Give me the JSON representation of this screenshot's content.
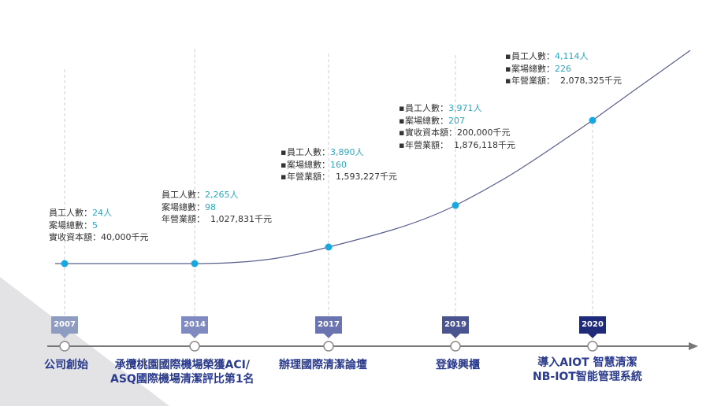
{
  "colors": {
    "curve": "#5a5f8e",
    "dot": "#18a8e0",
    "axis": "#777777",
    "accent": "#2aa8c0",
    "event_text": "#2a3a8c",
    "corner": "#e3e3e6"
  },
  "milestones": [
    {
      "year": "2007",
      "tag_color": "#8f9cc2",
      "event_lines": [
        "公司創始"
      ],
      "stats": [
        {
          "label": "員工人數：",
          "value": "24人",
          "accent": true
        },
        {
          "label": "案場總數：",
          "value": "5",
          "accent": true
        },
        {
          "label": "實收資本額：",
          "value": "40,000千元",
          "accent": false
        }
      ]
    },
    {
      "year": "2014",
      "tag_color": "#7f8bc0",
      "event_lines": [
        "承攬桃園國際機場榮獲ACI/",
        "ASQ國際機場清潔評比第1名"
      ],
      "stats": [
        {
          "label": "員工人數：",
          "value": "2,265人",
          "accent": true
        },
        {
          "label": "案場總數：",
          "value": "98",
          "accent": true
        },
        {
          "label": "年營業額：",
          "value": "  1,027,831千元",
          "accent": false
        }
      ]
    },
    {
      "year": "2017",
      "tag_color": "#6a74b0",
      "event_lines": [
        "辦理國際清潔論壇"
      ],
      "stats": [
        {
          "label": "員工人數：",
          "value": "3,890人",
          "accent": true
        },
        {
          "label": "案場總數：",
          "value": "160",
          "accent": true
        },
        {
          "label": "年營業額：",
          "value": "  1,593,227千元",
          "accent": false
        }
      ]
    },
    {
      "year": "2019",
      "tag_color": "#4a5490",
      "event_lines": [
        "登錄興櫃"
      ],
      "stats": [
        {
          "label": "員工人數：",
          "value": "3,971人",
          "accent": true
        },
        {
          "label": "案場總數：",
          "value": "207",
          "accent": true
        },
        {
          "label": "實收資本額：",
          "value": "200,000千元",
          "accent": false
        },
        {
          "label": "年營業額：",
          "value": "  1,876,118千元",
          "accent": false
        }
      ]
    },
    {
      "year": "2020",
      "tag_color": "#1f2a7a",
      "event_lines": [
        "導入AIOT 智慧清潔",
        "NB-IOT智能管理系統"
      ],
      "stats": [
        {
          "label": "員工人數：",
          "value": "4,114人",
          "accent": true
        },
        {
          "label": "案場總數：",
          "value": "226",
          "accent": true
        },
        {
          "label": "年營業額：",
          "value": "  2,078,325千元",
          "accent": false
        }
      ]
    }
  ]
}
